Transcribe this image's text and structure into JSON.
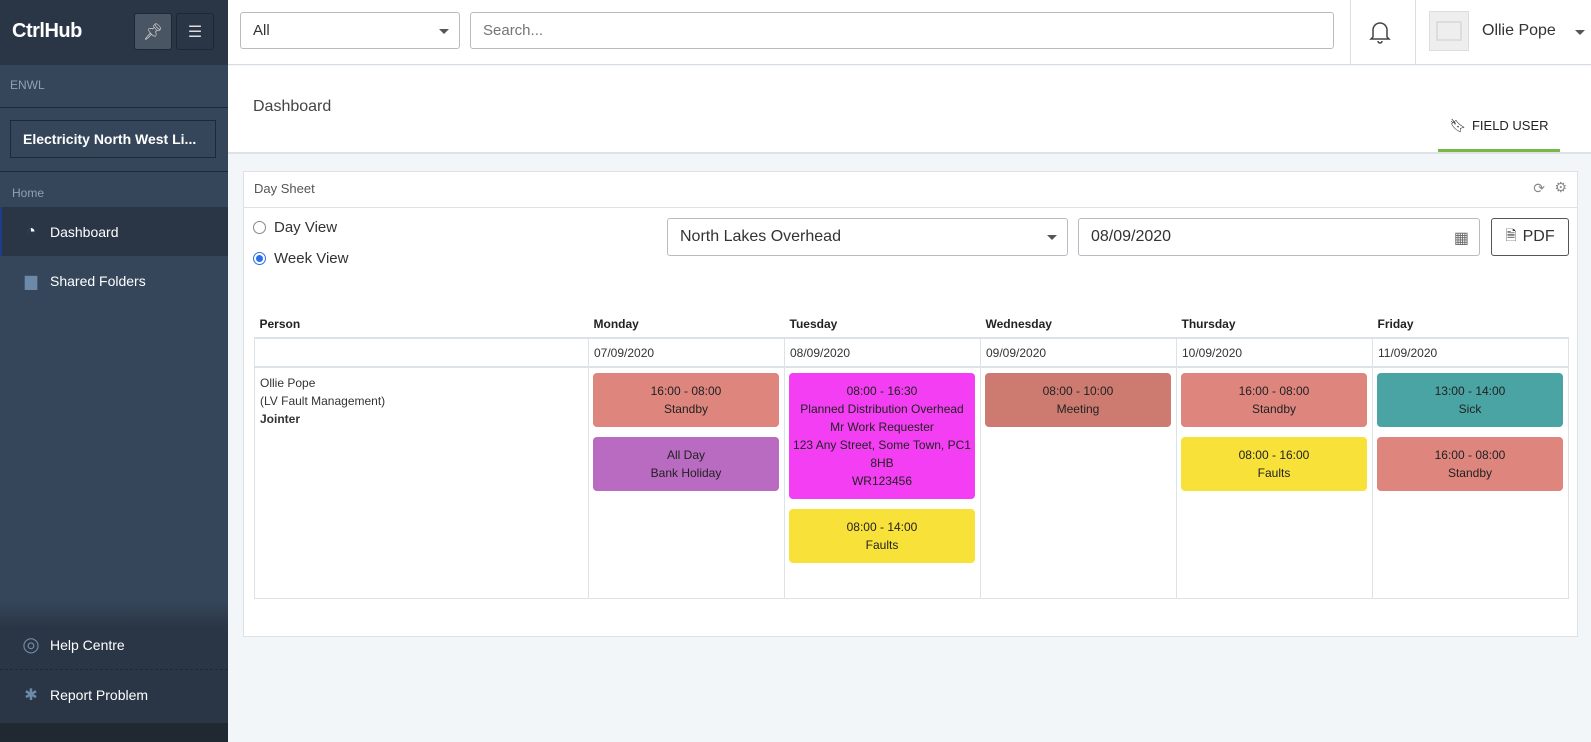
{
  "app": {
    "logo": "CtrlHub"
  },
  "sidebar": {
    "section": "ENWL",
    "org": "Electricity North West Li...",
    "home": "Home",
    "items": [
      {
        "label": "Dashboard",
        "icon": "tachometer-icon"
      },
      {
        "label": "Shared Folders",
        "icon": "folder-icon"
      }
    ],
    "bottom": [
      {
        "label": "Help Centre",
        "icon": "life-ring-icon"
      },
      {
        "label": "Report Problem",
        "icon": "bug-icon"
      }
    ]
  },
  "topbar": {
    "filter": "All",
    "search_placeholder": "Search...",
    "user": "Ollie Pope"
  },
  "header": {
    "title": "Dashboard",
    "tab": "FIELD USER",
    "tab_color": "#7ab648"
  },
  "panel": {
    "title": "Day Sheet",
    "views": [
      "Day View",
      "Week View"
    ],
    "selected_view": "Week View",
    "group": "North Lakes Overhead",
    "date": "08/09/2020",
    "pdf": "PDF"
  },
  "table": {
    "person_header": "Person",
    "days": [
      {
        "name": "Monday",
        "date": "07/09/2020"
      },
      {
        "name": "Tuesday",
        "date": "08/09/2020"
      },
      {
        "name": "Wednesday",
        "date": "09/09/2020"
      },
      {
        "name": "Thursday",
        "date": "10/09/2020"
      },
      {
        "name": "Friday",
        "date": "11/09/2020"
      }
    ],
    "person": {
      "name": "Ollie Pope",
      "team": "(LV Fault Management)",
      "role": "Jointer"
    },
    "events": [
      [
        {
          "lines": [
            "16:00 - 08:00",
            "Standby"
          ],
          "color": "#de857e"
        },
        {
          "lines": [
            "All Day",
            "Bank Holiday"
          ],
          "color": "#b96bc1"
        }
      ],
      [
        {
          "lines": [
            "08:00 - 16:30",
            "Planned Distribution Overhead",
            "Mr Work Requester",
            "123 Any Street, Some Town, PC1 8HB",
            "WR123456"
          ],
          "color": "#f43ef3"
        },
        {
          "lines": [
            "08:00 - 14:00",
            "Faults"
          ],
          "color": "#f8e23a"
        }
      ],
      [
        {
          "lines": [
            "08:00 - 10:00",
            "Meeting"
          ],
          "color": "#cd7b71"
        }
      ],
      [
        {
          "lines": [
            "16:00 - 08:00",
            "Standby"
          ],
          "color": "#de857e"
        },
        {
          "lines": [
            "08:00 - 16:00",
            "Faults"
          ],
          "color": "#f8e23a"
        }
      ],
      [
        {
          "lines": [
            "13:00 - 14:00",
            "Sick"
          ],
          "color": "#4aa4a3"
        },
        {
          "lines": [
            "16:00 - 08:00",
            "Standby"
          ],
          "color": "#de857e"
        }
      ]
    ]
  }
}
